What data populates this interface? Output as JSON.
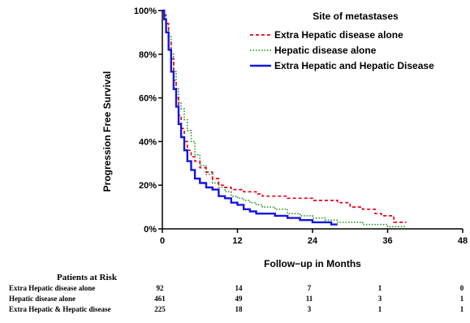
{
  "chart_data": {
    "type": "line",
    "step": true,
    "xlabel": "Follow−up in Months",
    "ylabel": "Progression Free Survival",
    "xlim": [
      0,
      48
    ],
    "ylim": [
      0,
      100
    ],
    "xticks": [
      "0",
      "12",
      "24",
      "36",
      "48"
    ],
    "yticks": [
      "0%",
      "20%",
      "40%",
      "60%",
      "80%",
      "100%"
    ],
    "grid": false,
    "legend": {
      "title": "Site of metastases",
      "placement": "top-right"
    },
    "series": [
      {
        "name": "Extra Hepatic disease alone",
        "color": "#e8001c",
        "dash": "dashed",
        "points": [
          [
            0,
            100
          ],
          [
            0.3,
            98
          ],
          [
            0.6,
            94
          ],
          [
            1,
            86
          ],
          [
            1.4,
            78
          ],
          [
            1.8,
            68
          ],
          [
            2.2,
            60
          ],
          [
            2.6,
            52
          ],
          [
            3,
            46
          ],
          [
            3.5,
            40
          ],
          [
            4,
            36
          ],
          [
            4.6,
            33
          ],
          [
            5.2,
            31
          ],
          [
            6,
            28
          ],
          [
            7,
            26
          ],
          [
            8,
            23
          ],
          [
            9,
            20
          ],
          [
            10,
            19
          ],
          [
            11,
            18
          ],
          [
            12,
            18
          ],
          [
            13,
            17
          ],
          [
            14,
            17
          ],
          [
            15,
            16
          ],
          [
            16,
            15
          ],
          [
            18,
            15
          ],
          [
            20,
            14
          ],
          [
            22,
            14
          ],
          [
            24,
            13
          ],
          [
            26,
            13
          ],
          [
            28,
            12
          ],
          [
            30,
            10
          ],
          [
            32,
            9
          ],
          [
            34,
            7
          ],
          [
            35,
            6
          ],
          [
            36,
            6
          ],
          [
            37,
            3
          ],
          [
            39,
            3
          ]
        ]
      },
      {
        "name": "Hepatic disease alone",
        "color": "#1e8c1e",
        "dash": "dotted",
        "points": [
          [
            0,
            100
          ],
          [
            0.3,
            98
          ],
          [
            0.6,
            94
          ],
          [
            1,
            88
          ],
          [
            1.4,
            80
          ],
          [
            1.8,
            72
          ],
          [
            2.2,
            64
          ],
          [
            2.6,
            58
          ],
          [
            3,
            55
          ],
          [
            3.5,
            50
          ],
          [
            4,
            45
          ],
          [
            4.6,
            40
          ],
          [
            5.2,
            34
          ],
          [
            6,
            29
          ],
          [
            7,
            25
          ],
          [
            8,
            21
          ],
          [
            9,
            19
          ],
          [
            10,
            17
          ],
          [
            11,
            15
          ],
          [
            12,
            14
          ],
          [
            13,
            13
          ],
          [
            14,
            12
          ],
          [
            15,
            11
          ],
          [
            16,
            10
          ],
          [
            18,
            9
          ],
          [
            20,
            7
          ],
          [
            22,
            6
          ],
          [
            24,
            5
          ],
          [
            26,
            4
          ],
          [
            28,
            3
          ],
          [
            30,
            3
          ],
          [
            32,
            2
          ],
          [
            34,
            2
          ],
          [
            36,
            1
          ],
          [
            38,
            1
          ],
          [
            39,
            1
          ]
        ]
      },
      {
        "name": "Extra Hepatic and Hepatic Disease",
        "color": "#1515e0",
        "dash": "solid",
        "points": [
          [
            0,
            100
          ],
          [
            0.3,
            96
          ],
          [
            0.6,
            90
          ],
          [
            1,
            82
          ],
          [
            1.4,
            72
          ],
          [
            1.8,
            64
          ],
          [
            2.2,
            56
          ],
          [
            2.6,
            48
          ],
          [
            3,
            42
          ],
          [
            3.5,
            36
          ],
          [
            4,
            31
          ],
          [
            4.6,
            27
          ],
          [
            5.2,
            23
          ],
          [
            6,
            21
          ],
          [
            7,
            19
          ],
          [
            8,
            18
          ],
          [
            9,
            15
          ],
          [
            10,
            14
          ],
          [
            11,
            12
          ],
          [
            12,
            11
          ],
          [
            13,
            9
          ],
          [
            14,
            8
          ],
          [
            15,
            7
          ],
          [
            16,
            7
          ],
          [
            18,
            6
          ],
          [
            20,
            5
          ],
          [
            22,
            4
          ],
          [
            24,
            3
          ],
          [
            26,
            3
          ],
          [
            27,
            2
          ],
          [
            28,
            2
          ]
        ]
      }
    ]
  },
  "patients_at_risk": {
    "title": "Patients at Risk",
    "rows": [
      {
        "label": "Extra Hepatic disease alone",
        "values": [
          "92",
          "14",
          "7",
          "1",
          "0"
        ]
      },
      {
        "label": "Hepatic disease alone",
        "values": [
          "461",
          "49",
          "11",
          "3",
          "1"
        ]
      },
      {
        "label": "Extra Hepatic & Hepatic disease",
        "values": [
          "225",
          "18",
          "3",
          "1",
          "1"
        ]
      }
    ]
  }
}
